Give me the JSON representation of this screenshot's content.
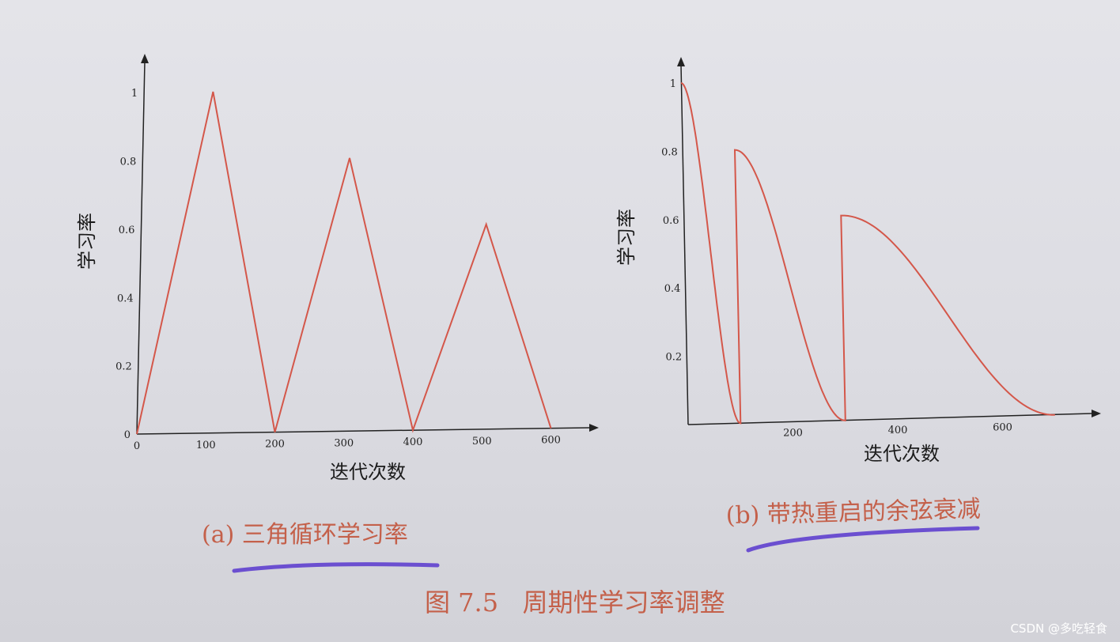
{
  "chart_data": [
    {
      "type": "line",
      "caption": "(a) 三角循环学习率",
      "xlabel": "迭代次数",
      "ylabel": "学习率",
      "x_ticks": [
        "0",
        "100",
        "200",
        "300",
        "400",
        "500",
        "600"
      ],
      "y_ticks": [
        "0",
        "0.2",
        "0.4",
        "0.6",
        "0.8",
        "1"
      ],
      "xlim": [
        0,
        650
      ],
      "ylim": [
        0,
        1.1
      ],
      "line_color": "#d4574a",
      "series": [
        {
          "x": [
            0,
            100,
            200,
            300,
            400,
            500,
            600
          ],
          "y": [
            0,
            1.0,
            0,
            0.8,
            0,
            0.6,
            0
          ]
        }
      ]
    },
    {
      "type": "line",
      "caption": "(b) 带热重启的余弦衰减",
      "xlabel": "迭代次数",
      "ylabel": "学习率",
      "x_ticks": [
        "200",
        "400",
        "600"
      ],
      "y_ticks": [
        "0.2",
        "0.4",
        "0.6",
        "0.8",
        "1"
      ],
      "xlim": [
        0,
        760
      ],
      "ylim": [
        0,
        1.1
      ],
      "line_color": "#d4574a",
      "restarts": [
        {
          "start": 0,
          "end": 100,
          "peak": 1.0
        },
        {
          "start": 100,
          "end": 300,
          "peak": 0.8
        },
        {
          "start": 300,
          "end": 700,
          "peak": 0.6
        }
      ]
    }
  ],
  "figure_caption": "图 7.5   周期性学习率调整",
  "underline_color": "#6b4fd0",
  "watermark": "CSDN @多吃轻食"
}
